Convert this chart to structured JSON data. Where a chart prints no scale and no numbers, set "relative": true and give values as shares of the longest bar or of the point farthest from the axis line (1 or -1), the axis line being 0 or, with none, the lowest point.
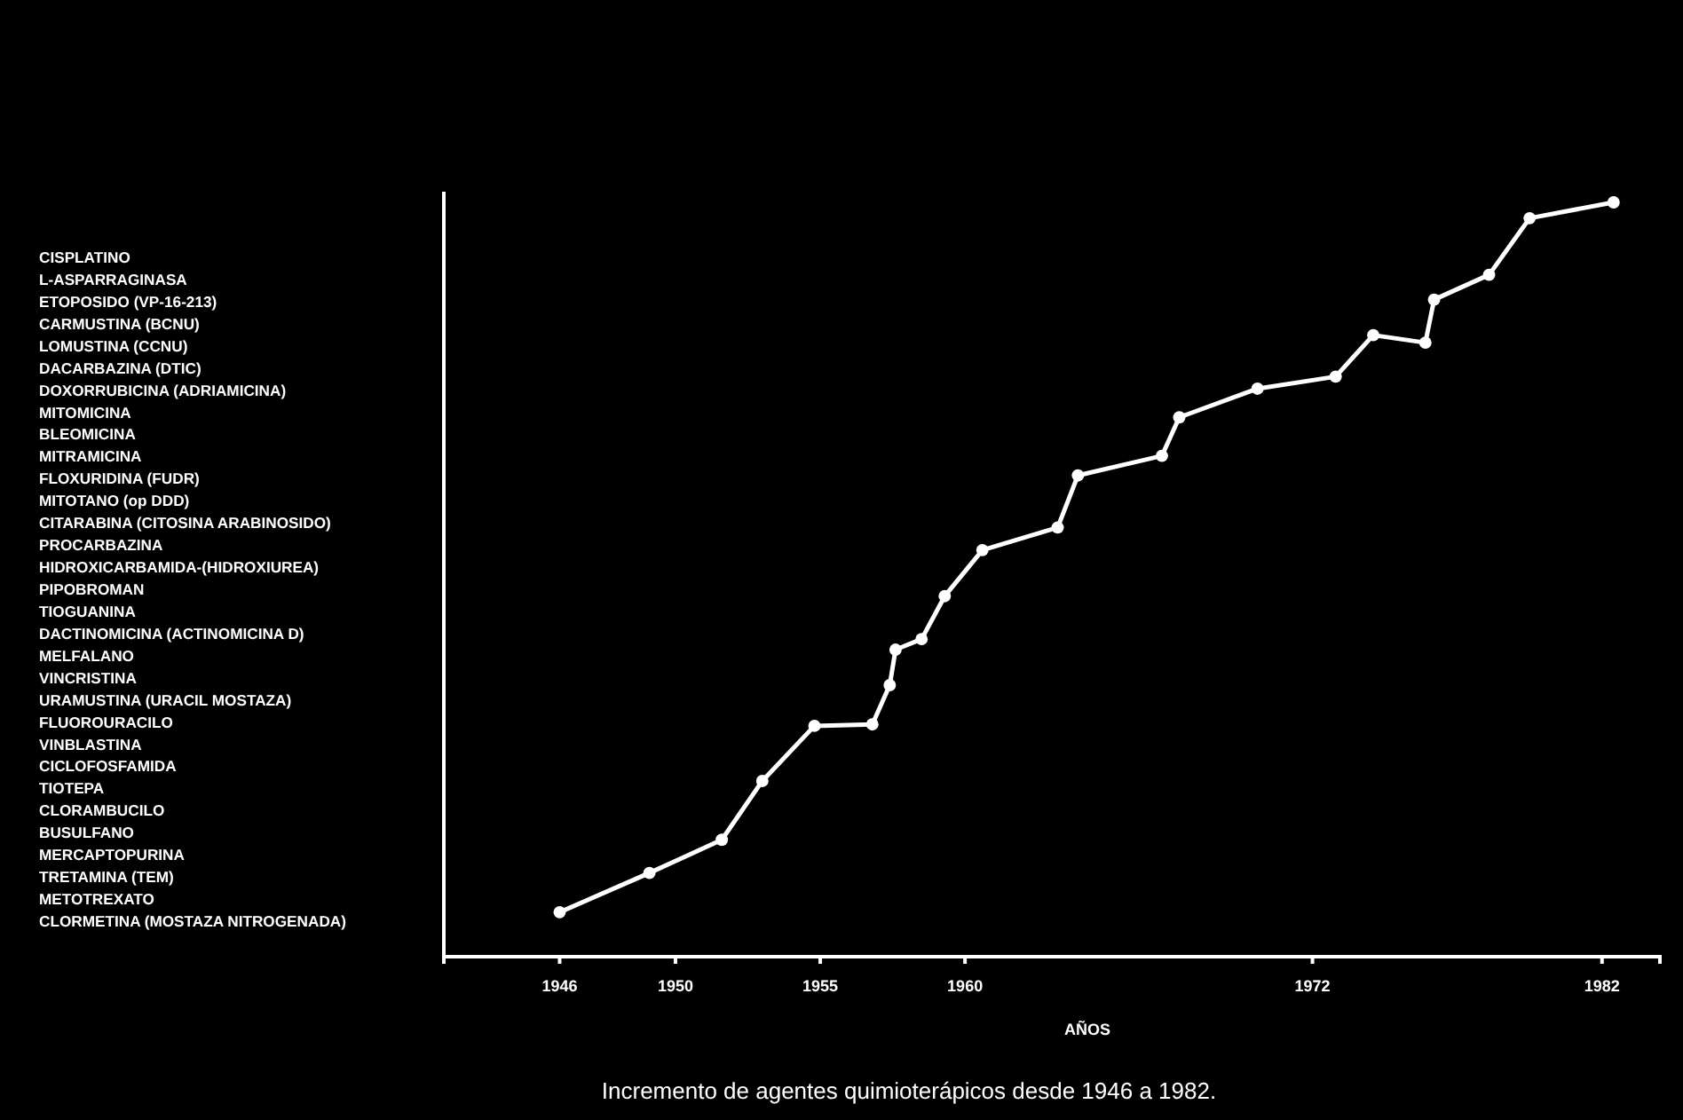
{
  "chart_data": {
    "type": "line",
    "title": "Incremento de agentes quimioterápicos desde 1946 a 1982.",
    "xlabel": "AÑOS",
    "relative": true,
    "marker": "circle",
    "grid": false,
    "xlim": [
      1942,
      1984
    ],
    "xticks": [
      1946,
      1950,
      1955,
      1960,
      1972,
      1982
    ],
    "tick_labels": "x",
    "series": [
      {
        "color": "#ffffff",
        "x": [
          1946,
          1949.1,
          1951.6,
          1953.0,
          1954.8,
          1956.8,
          1957.4,
          1957.6,
          1958.5,
          1959.3,
          1960.6,
          1963.2,
          1963.9,
          1966.8,
          1967.4,
          1970.1,
          1972.8,
          1974.1,
          1975.9,
          1976.2,
          1978.1,
          1979.5,
          1982.4
        ],
        "values": [
          0.059,
          0.111,
          0.155,
          0.233,
          0.306,
          0.308,
          0.36,
          0.407,
          0.421,
          0.478,
          0.539,
          0.569,
          0.638,
          0.664,
          0.715,
          0.753,
          0.769,
          0.824,
          0.814,
          0.871,
          0.904,
          0.979,
          1
        ]
      }
    ],
    "annotations": [
      "CISPLATINO",
      "L-ASPARRAGINASA",
      "ETOPOSIDO (VP-16-213)",
      "CARMUSTINA (BCNU)",
      "LOMUSTINA (CCNU)",
      "DACARBAZINA (DTIC)",
      "DOXORRUBICINA (ADRIAMICINA)",
      "MITOMICINA",
      "BLEOMICINA",
      "MITRAMICINA",
      "FLOXURIDINA (FUDR)",
      "MITOTANO (op DDD)",
      "CITARABINA (CITOSINA ARABINOSIDO)",
      "PROCARBAZINA",
      "HIDROXICARBAMIDA-(HIDROXIUREA)",
      "PIPOBROMAN",
      "TIOGUANINA",
      "DACTINOMICINA (ACTINOMICINA D)",
      "MELFALANO",
      "VINCRISTINA",
      "URAMUSTINA (URACIL MOSTAZA)",
      "FLUOROURACILO",
      "VINBLASTINA",
      "CICLOFOSFAMIDA",
      "TIOTEPA",
      "CLORAMBUCILO",
      "BUSULFANO",
      "MERCAPTOPURINA",
      "TRETAMINA (TEM)",
      "METOTREXATO",
      "CLORMETINA (MOSTAZA NITROGENADA)"
    ]
  }
}
